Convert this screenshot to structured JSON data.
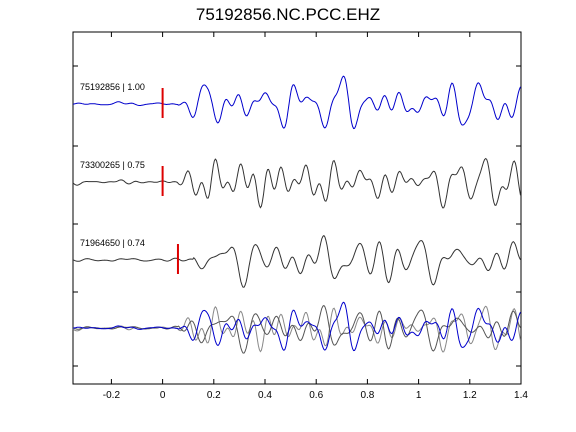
{
  "chart_data": {
    "type": "line",
    "title": "75192856.NC.PCC.EHZ",
    "xlabel": "",
    "ylabel": "",
    "xlim": [
      -0.35,
      1.4
    ],
    "x_ticks": [
      -0.2,
      0,
      0.2,
      0.4,
      0.6,
      0.8,
      1,
      1.2,
      1.4
    ],
    "x_tick_labels": [
      "-0.2",
      "0",
      "0.2",
      "0.4",
      "0.6",
      "0.8",
      "1",
      "1.2",
      "1.4"
    ],
    "grid": false,
    "pick_color": "#dd0000",
    "traces": [
      {
        "label": "75192856 | 1.00",
        "color": "#0000cc",
        "pick_time": 0.0,
        "offset": 3
      },
      {
        "label": "73300265 | 0.75",
        "color": "#333333",
        "pick_time": 0.0,
        "offset": 2
      },
      {
        "label": "71964650 | 0.74",
        "color": "#333333",
        "pick_time": 0.06,
        "offset": 1
      }
    ],
    "overlay": {
      "offset": 0,
      "colors": [
        "#888888",
        "#555555",
        "#0000cc"
      ]
    }
  }
}
